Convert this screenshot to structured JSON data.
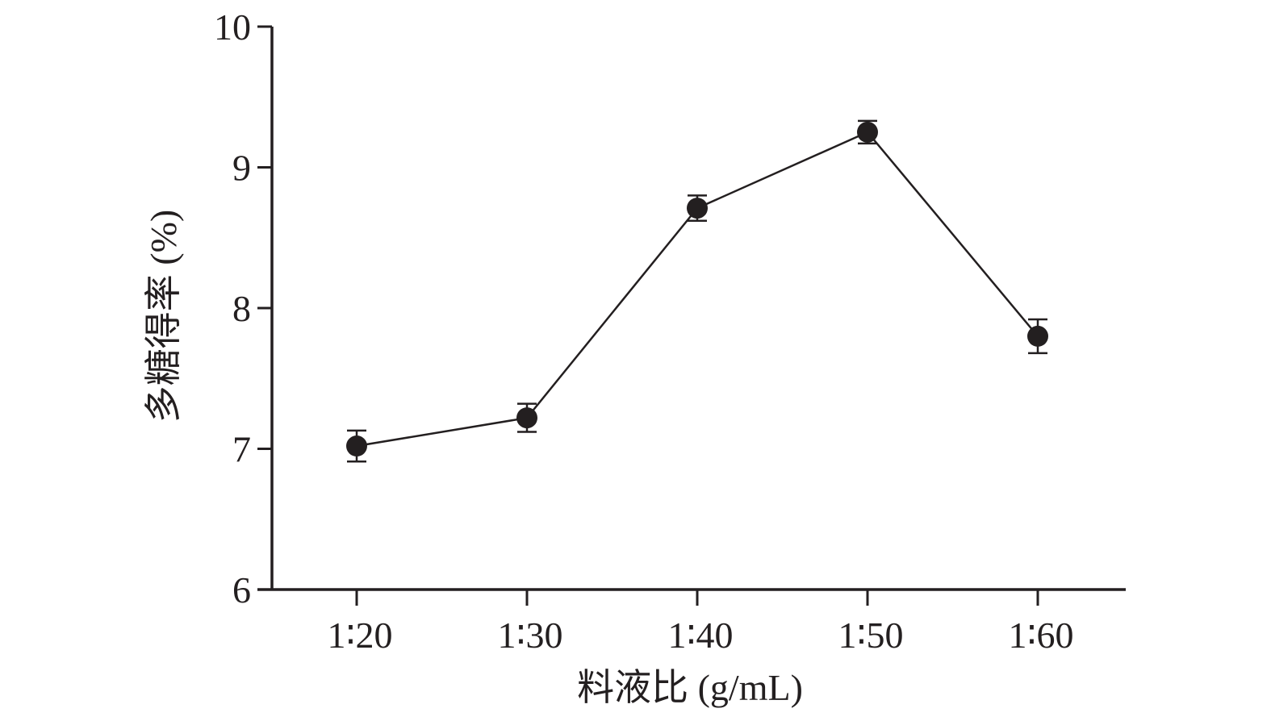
{
  "chart_data": {
    "type": "line",
    "xlabel": "料液比 (g/mL)",
    "ylabel": "多糖得率 (%)",
    "categories": [
      "1∶20",
      "1∶30",
      "1∶40",
      "1∶50",
      "1∶60"
    ],
    "series": [
      {
        "values": [
          7.02,
          7.22,
          8.71,
          9.25,
          7.8
        ],
        "errors": [
          0.11,
          0.1,
          0.09,
          0.08,
          0.12
        ]
      }
    ],
    "ylim": [
      6,
      10
    ],
    "yticks": [
      "6",
      "7",
      "8",
      "9",
      "10"
    ],
    "grid": false,
    "legend": "none",
    "colors": {
      "ink": "#231f20"
    }
  }
}
